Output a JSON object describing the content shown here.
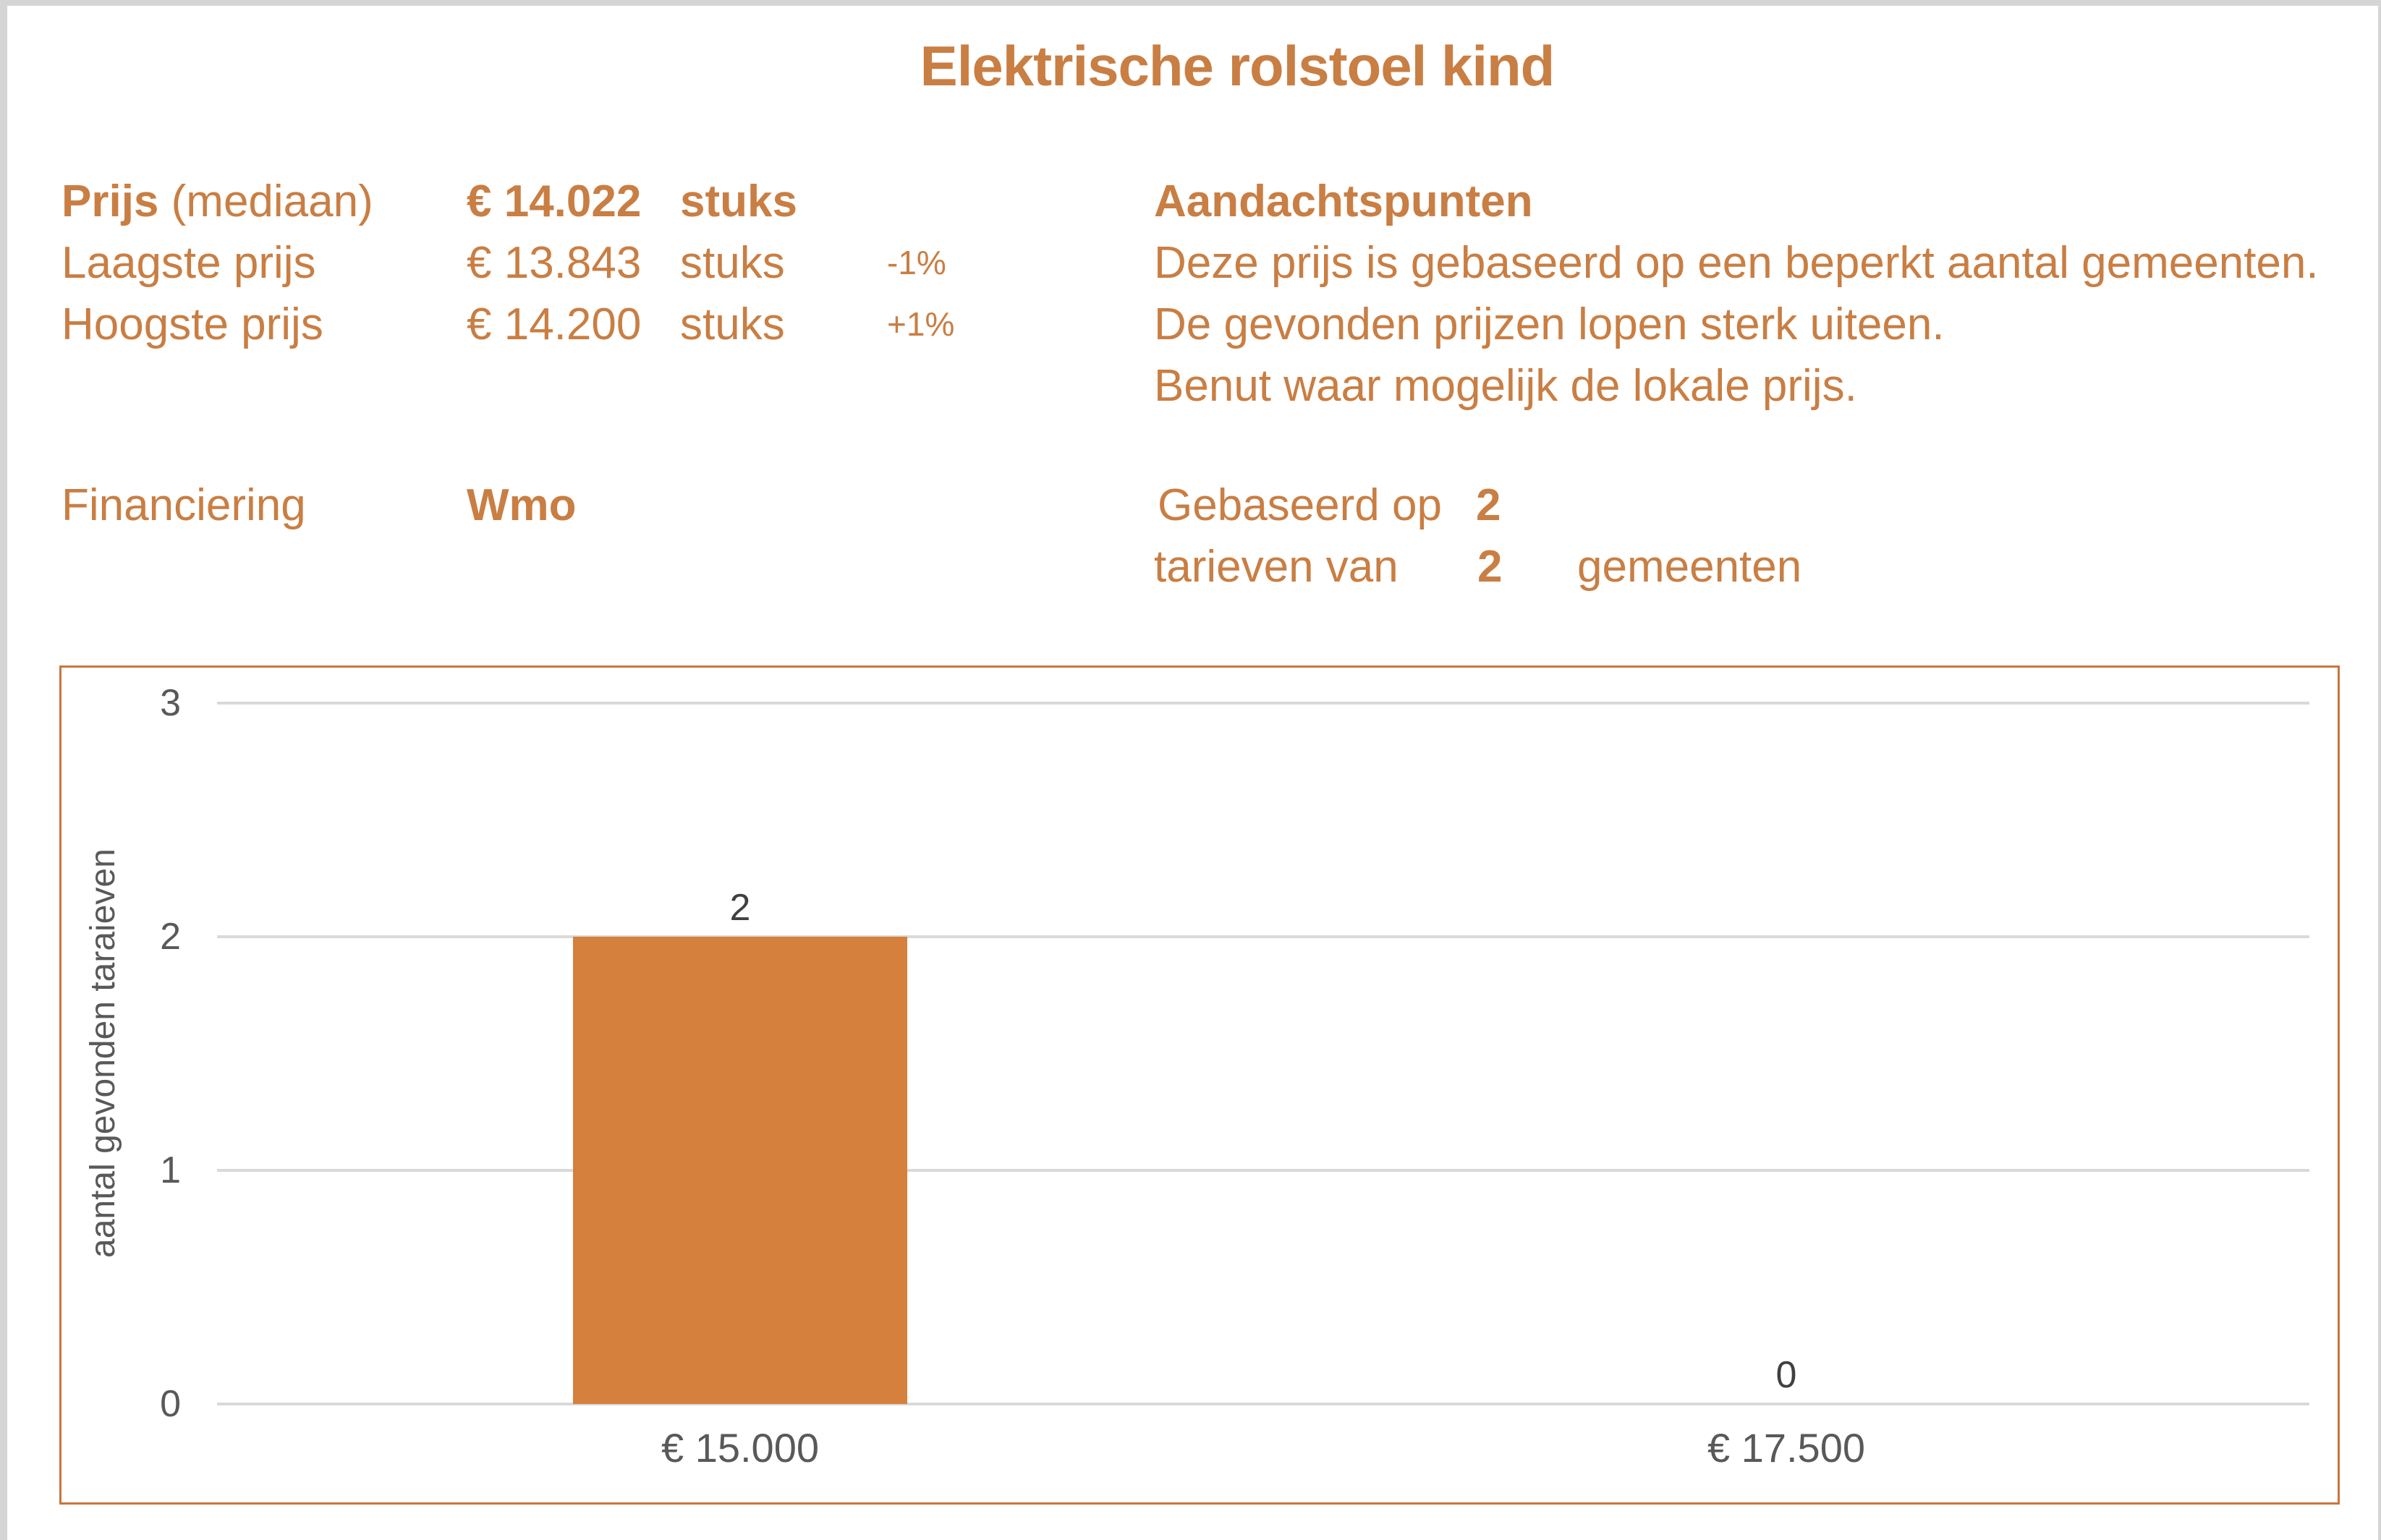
{
  "colors": {
    "accent": "#C97E43",
    "bar": "#D5803C",
    "chart_border": "#C9763C",
    "grid": "#D9D9D9",
    "tick_text": "#595959",
    "data_label": "#404040",
    "frame": "#D5D5D5"
  },
  "title": "Elektrische rolstoel kind",
  "summary": {
    "median": {
      "label_bold": "Prijs",
      "label_rest": " (mediaan)",
      "value": "€ 14.022",
      "unit": "stuks"
    },
    "lowest": {
      "label": "Laagste prijs",
      "value": "€ 13.843",
      "unit": "stuks",
      "delta": "-1%"
    },
    "highest": {
      "label": "Hoogste prijs",
      "value": "€ 14.200",
      "unit": "stuks",
      "delta": "+1%"
    },
    "financing": {
      "label": "Financiering",
      "value": "Wmo"
    }
  },
  "notes": {
    "heading": "Aandachtspunten",
    "lines": [
      "Deze prijs is gebaseerd op een beperkt aantal gemeenten.",
      "De gevonden prijzen lopen sterk uiteen.",
      "Benut waar mogelijk de lokale prijs."
    ],
    "based_on_prefix": "Gebaseerd op",
    "based_on_count": "2",
    "tariffs_prefix": "tarieven van",
    "tariffs_count": "2",
    "tariffs_suffix": "gemeenten"
  },
  "chart_data": {
    "type": "bar",
    "categories": [
      "€ 15.000",
      "€ 17.500"
    ],
    "values": [
      2,
      0
    ],
    "title": "",
    "xlabel": "",
    "ylabel": "aantal gevonden taraieven",
    "ylim": [
      0,
      3
    ],
    "yticks": [
      0,
      1,
      2,
      3
    ],
    "grid": true,
    "legend": false,
    "bar_color": "#D5803C"
  }
}
